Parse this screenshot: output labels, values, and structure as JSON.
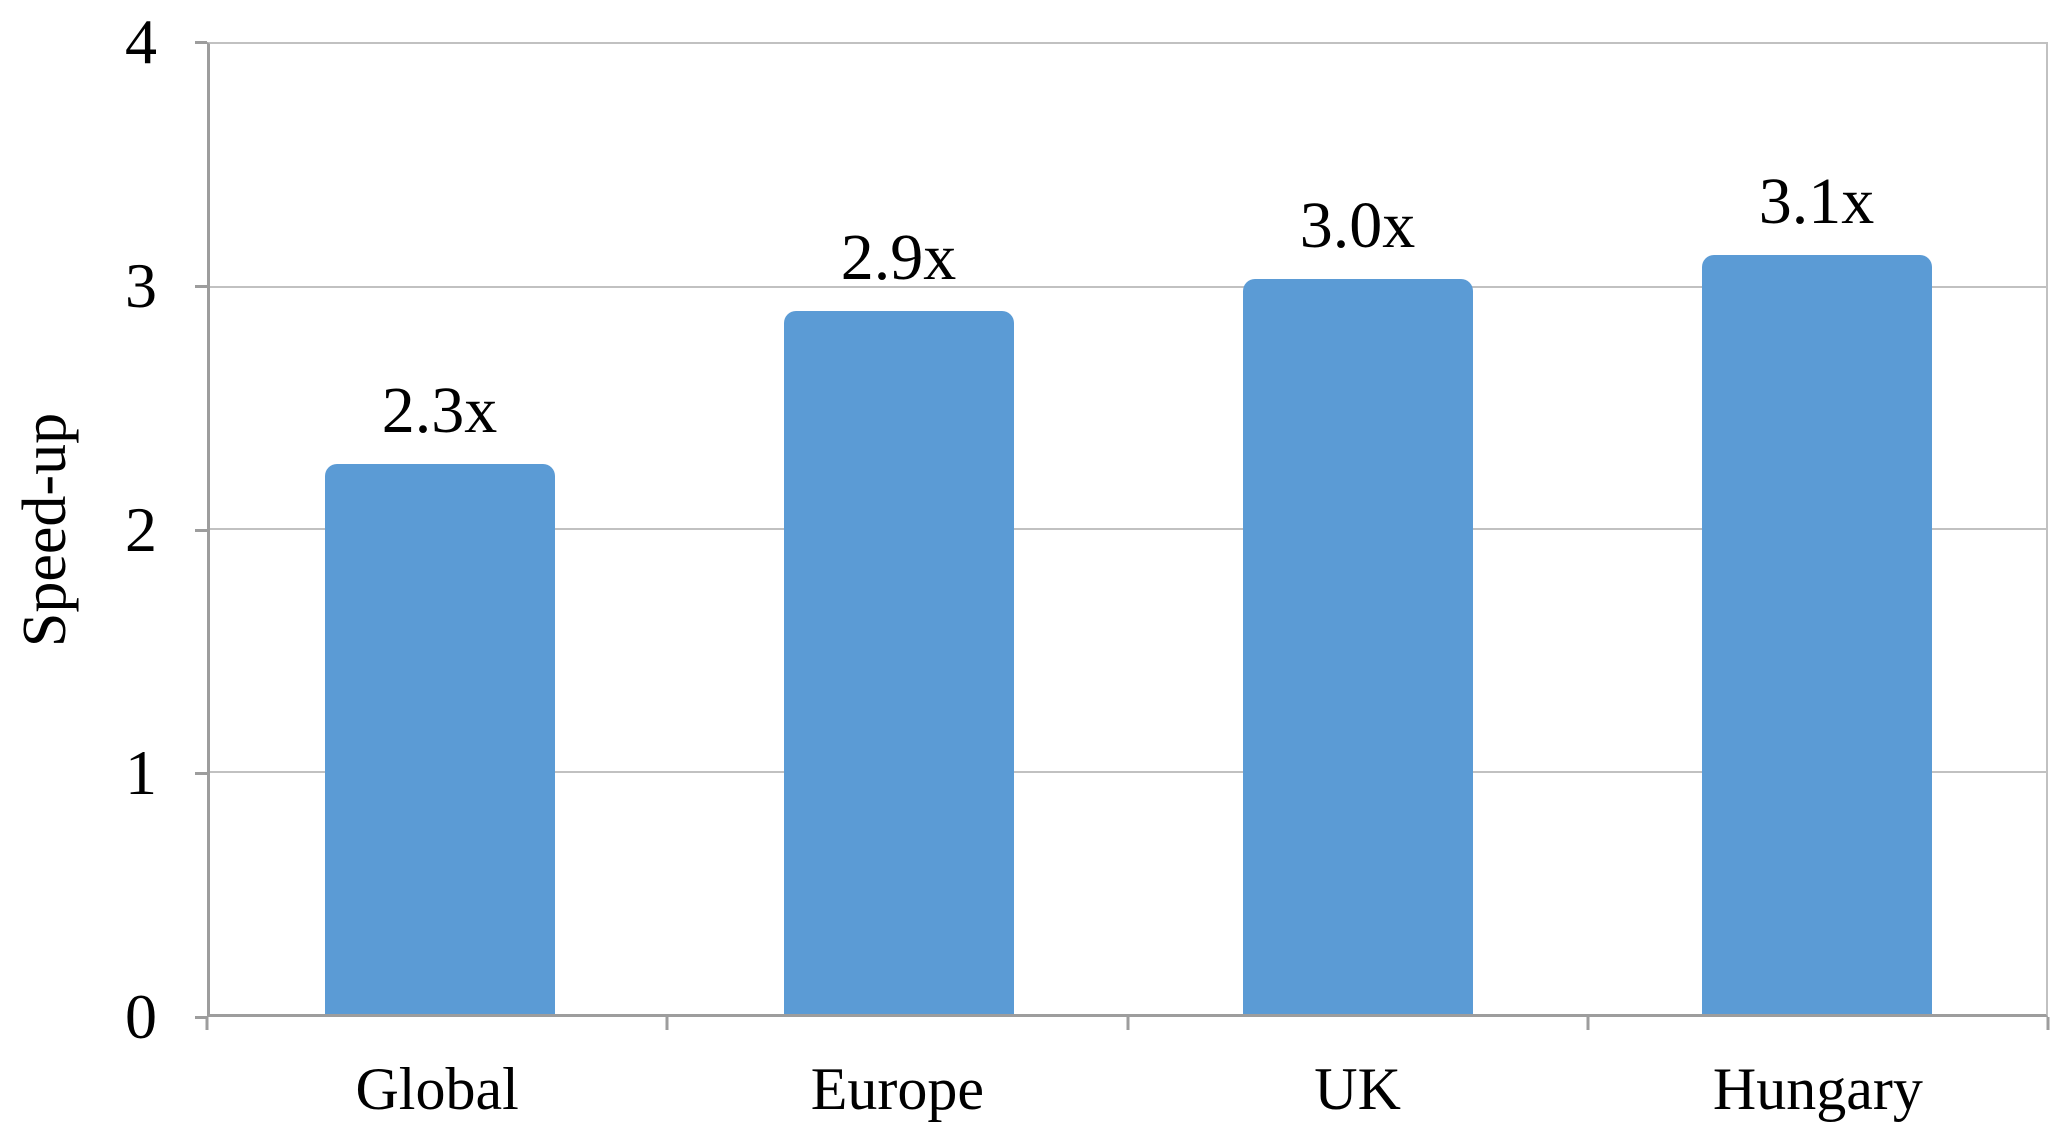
{
  "chart_data": {
    "type": "bar",
    "title": "",
    "xlabel": "",
    "ylabel": "Speed-up",
    "categories": [
      "Global",
      "Europe",
      "UK",
      "Hungary"
    ],
    "values": [
      2.27,
      2.9,
      3.03,
      3.13
    ],
    "value_labels": [
      "2.3x",
      "2.9x",
      "3.0x",
      "3.1x"
    ],
    "ylim": [
      0,
      4
    ],
    "yticks": [
      0,
      1,
      2,
      3,
      4
    ],
    "grid": true,
    "legend": false,
    "colors": {
      "bar": "#5b9bd5",
      "gridline": "#c1c1c1",
      "axis": "#9d9d9d",
      "text": "#000000",
      "background": "#ffffff"
    }
  }
}
